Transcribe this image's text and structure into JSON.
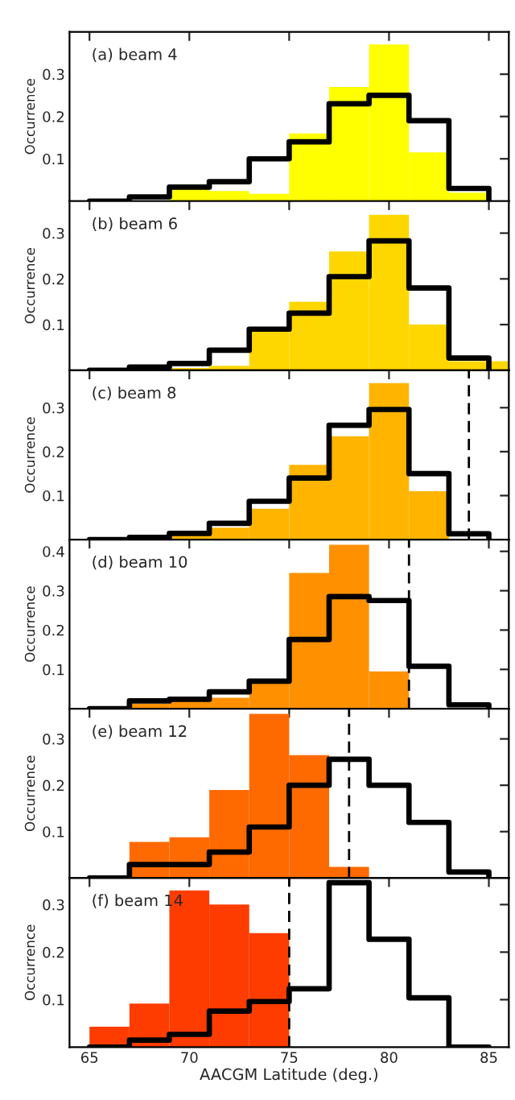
{
  "chart_data": [
    {
      "type": "histogram",
      "ylabel": "Occurrence",
      "annotations": [
        "(a) beam 4"
      ],
      "bins": [
        65,
        67,
        69,
        71,
        73,
        75,
        77,
        79,
        81,
        83,
        85,
        87
      ],
      "xlim": [
        64,
        86
      ],
      "xticks": [
        65,
        70,
        75,
        80,
        85
      ],
      "ylim": [
        0,
        0.4
      ],
      "yticks": [
        0.1,
        0.2,
        0.3
      ],
      "tick_labels": "y",
      "series": [
        {
          "color": "#ffff00",
          "values": [
            0,
            0,
            0.03,
            0.024,
            0.017,
            0.16,
            0.27,
            0.37,
            0.115,
            0.02,
            0
          ]
        },
        {
          "type": "step",
          "color": "#000000",
          "x": [
            65,
            67,
            69,
            71,
            73,
            75,
            77,
            79,
            81,
            83,
            85
          ],
          "values": [
            0,
            0.01,
            0.033,
            0.046,
            0.1,
            0.14,
            0.23,
            0.25,
            0.19,
            0.03,
            0
          ]
        }
      ]
    },
    {
      "type": "histogram",
      "ylabel": "Occurrence",
      "annotations": [
        "(b) beam 6"
      ],
      "bins": [
        65,
        67,
        69,
        71,
        73,
        75,
        77,
        79,
        81,
        83,
        85,
        87
      ],
      "xlim": [
        64,
        86
      ],
      "xticks": [
        65,
        70,
        75,
        80,
        85
      ],
      "ylim": [
        0,
        0.37
      ],
      "yticks": [
        0.1,
        0.2,
        0.3
      ],
      "tick_labels": "y",
      "series": [
        {
          "color": "#ffd700",
          "values": [
            0,
            0,
            0.005,
            0.01,
            0.09,
            0.15,
            0.26,
            0.34,
            0.1,
            0.02,
            0.02
          ]
        },
        {
          "type": "step",
          "color": "#000000",
          "x": [
            65,
            67,
            69,
            71,
            73,
            75,
            77,
            79,
            81,
            83,
            85
          ],
          "values": [
            0,
            0.007,
            0.015,
            0.044,
            0.09,
            0.125,
            0.205,
            0.283,
            0.18,
            0.027,
            0
          ]
        }
      ]
    },
    {
      "type": "histogram",
      "ylabel": "Occurrence",
      "annotations": [
        "(c) beam 8"
      ],
      "bins": [
        65,
        67,
        69,
        71,
        73,
        75,
        77,
        79,
        81,
        83,
        85,
        87
      ],
      "xlim": [
        64,
        86
      ],
      "xticks": [
        65,
        70,
        75,
        80,
        85
      ],
      "ylim": [
        0,
        0.385
      ],
      "yticks": [
        0.1,
        0.2,
        0.3
      ],
      "tick_labels": "y",
      "ref_lines": [
        {
          "axis": "x",
          "value": 84,
          "color": "#000000",
          "line_style": "dashed"
        }
      ],
      "series": [
        {
          "color": "#ffb400",
          "values": [
            0,
            0,
            0.01,
            0.027,
            0.07,
            0.17,
            0.235,
            0.356,
            0.11,
            0,
            0
          ]
        },
        {
          "type": "step",
          "color": "#000000",
          "x": [
            65,
            67,
            69,
            71,
            73,
            75,
            77,
            79,
            81,
            83,
            85
          ],
          "values": [
            0,
            0.005,
            0.014,
            0.037,
            0.087,
            0.14,
            0.26,
            0.296,
            0.15,
            0.013,
            0
          ]
        }
      ]
    },
    {
      "type": "histogram",
      "ylabel": "Occurrence",
      "annotations": [
        "(d) beam 10"
      ],
      "bins": [
        65,
        67,
        69,
        71,
        73,
        75,
        77,
        79,
        81,
        83,
        85,
        87
      ],
      "xlim": [
        64,
        86
      ],
      "xticks": [
        65,
        70,
        75,
        80,
        85
      ],
      "ylim": [
        0,
        0.43
      ],
      "yticks": [
        0.1,
        0.2,
        0.3,
        0.4
      ],
      "tick_labels": "y",
      "ref_lines": [
        {
          "axis": "x",
          "value": 81,
          "color": "#000000",
          "line_style": "dashed"
        }
      ],
      "series": [
        {
          "color": "#ff9000",
          "values": [
            0,
            0.013,
            0.018,
            0.028,
            0.07,
            0.345,
            0.417,
            0.095,
            0,
            0,
            0
          ]
        },
        {
          "type": "step",
          "color": "#000000",
          "x": [
            65,
            67,
            69,
            71,
            73,
            75,
            77,
            79,
            81,
            83,
            85
          ],
          "values": [
            0,
            0.02,
            0.024,
            0.043,
            0.07,
            0.176,
            0.285,
            0.275,
            0.108,
            0.01,
            0
          ]
        }
      ]
    },
    {
      "type": "histogram",
      "ylabel": "Occurrence",
      "annotations": [
        "(e) beam 12"
      ],
      "bins": [
        65,
        67,
        69,
        71,
        73,
        75,
        77,
        79,
        81,
        83,
        85,
        87
      ],
      "xlim": [
        64,
        86
      ],
      "xticks": [
        65,
        70,
        75,
        80,
        85
      ],
      "ylim": [
        0,
        0.365
      ],
      "yticks": [
        0.1,
        0.2,
        0.3
      ],
      "tick_labels": "y",
      "ref_lines": [
        {
          "axis": "x",
          "value": 78,
          "color": "#000000",
          "line_style": "dashed"
        }
      ],
      "series": [
        {
          "color": "#ff6a00",
          "values": [
            0,
            0.078,
            0.088,
            0.19,
            0.354,
            0.265,
            0.024,
            0,
            0,
            0,
            0
          ]
        },
        {
          "type": "step",
          "color": "#000000",
          "x": [
            65,
            67,
            69,
            71,
            73,
            75,
            77,
            79,
            81,
            83,
            85
          ],
          "values": [
            0,
            0.029,
            0.029,
            0.056,
            0.11,
            0.2,
            0.256,
            0.2,
            0.12,
            0.013,
            0
          ]
        }
      ]
    },
    {
      "type": "histogram",
      "ylabel": "Occurrence",
      "xlabel": "AACGM Latitude (deg.)",
      "annotations": [
        "(f) beam 14"
      ],
      "bins": [
        65,
        67,
        69,
        71,
        73,
        75,
        77,
        79,
        81,
        83,
        85,
        87
      ],
      "xlim": [
        64,
        86
      ],
      "xticks": [
        65,
        70,
        75,
        80,
        85
      ],
      "ylim": [
        0,
        0.356
      ],
      "yticks": [
        0.1,
        0.2,
        0.3
      ],
      "ref_lines": [
        {
          "axis": "x",
          "value": 75,
          "color": "#000000",
          "line_style": "dashed"
        }
      ],
      "series": [
        {
          "color": "#ff3c00",
          "values": [
            0.043,
            0.092,
            0.33,
            0.3,
            0.24,
            0,
            0,
            0,
            0,
            0,
            0
          ]
        },
        {
          "type": "step",
          "color": "#000000",
          "x": [
            65,
            67,
            69,
            71,
            73,
            75,
            77,
            79,
            81,
            83,
            85
          ],
          "values": [
            0,
            0.015,
            0.027,
            0.076,
            0.096,
            0.123,
            0.346,
            0.227,
            0.104,
            0,
            0
          ]
        }
      ]
    }
  ]
}
